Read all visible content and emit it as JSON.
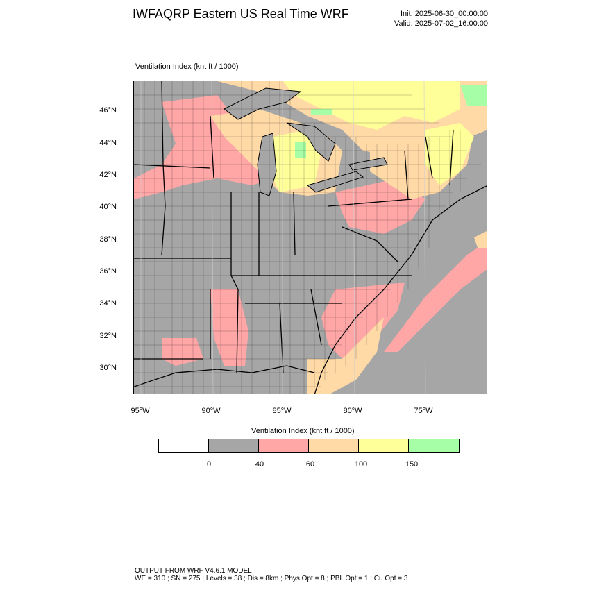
{
  "header": {
    "title": "IWFAQRP Eastern US Real Time WRF",
    "init": "Init: 2025-06-30_00:00:00",
    "valid": "Valid: 2025-07-02_16:00:00"
  },
  "plot": {
    "label": "Ventilation Index   (knt ft / 1000)"
  },
  "axes": {
    "lat_labels": [
      "46°N",
      "44°N",
      "42°N",
      "40°N",
      "38°N",
      "36°N",
      "34°N",
      "32°N",
      "30°N"
    ],
    "lon_labels": [
      "95°W",
      "90°W",
      "85°W",
      "80°W",
      "75°W"
    ]
  },
  "legend": {
    "title": "Ventilation Index  (knt ft / 1000)",
    "colors": [
      "#ffffff",
      "#a6a6a6",
      "#ffa6a6",
      "#ffd9a6",
      "#ffff99",
      "#a6ffa6"
    ],
    "ticks": [
      "0",
      "40",
      "60",
      "100",
      "150"
    ]
  },
  "palette": {
    "water": "#a6a6a6",
    "land_low": "#a6a6a6",
    "band_40_60": "#ffa6a6",
    "band_60_100": "#ffd9a6",
    "band_100_150": "#ffff99",
    "band_150_plus": "#a6ffa6"
  },
  "footer": {
    "line1": "OUTPUT FROM WRF V4.6.1 MODEL",
    "line2": "WE = 310 ; SN = 275 ; Levels = 38 ; Dis = 8km ; Phys Opt = 8 ; PBL Opt = 1 ; Cu Opt = 3"
  }
}
